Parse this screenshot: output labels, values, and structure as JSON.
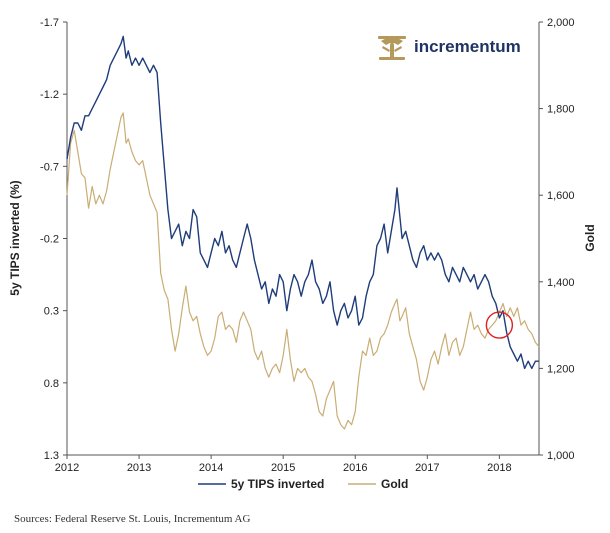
{
  "brand": {
    "name": "incrementum",
    "logo_icon": "tree-logo-icon",
    "logo_color": "#b5995b"
  },
  "source": "Sources: Federal Reserve St. Louis, Incrementum AG",
  "chart_data": {
    "type": "line",
    "title": "",
    "xlabel": "",
    "x_ticks": [
      "2012",
      "2013",
      "2014",
      "2015",
      "2016",
      "2017",
      "2018"
    ],
    "xlim": [
      2012.0,
      2018.55
    ],
    "y_left": {
      "label": "5y TIPS inverted (%)",
      "ticks": [
        "-1.7",
        "-1.2",
        "-0.7",
        "-0.2",
        "0.3",
        "0.8",
        "1.3"
      ],
      "range": [
        -1.7,
        1.3
      ],
      "inverted": true
    },
    "y_right": {
      "label": "Gold",
      "ticks": [
        "2,000",
        "1,800",
        "1,600",
        "1,400",
        "1,200",
        "1,000"
      ],
      "range": [
        1000,
        2000
      ]
    },
    "legend_position": "bottom-center",
    "annotation": {
      "type": "circle",
      "x": 2018.0,
      "axis": "right",
      "y": 1300,
      "color": "#e02020"
    },
    "series": [
      {
        "name": "5y TIPS inverted",
        "axis": "left",
        "color": "#1f3d7a",
        "points": [
          [
            2012.0,
            -0.75
          ],
          [
            2012.05,
            -0.9
          ],
          [
            2012.1,
            -1.0
          ],
          [
            2012.15,
            -1.0
          ],
          [
            2012.2,
            -0.95
          ],
          [
            2012.25,
            -1.05
          ],
          [
            2012.3,
            -1.05
          ],
          [
            2012.35,
            -1.1
          ],
          [
            2012.4,
            -1.15
          ],
          [
            2012.45,
            -1.2
          ],
          [
            2012.5,
            -1.25
          ],
          [
            2012.55,
            -1.3
          ],
          [
            2012.6,
            -1.4
          ],
          [
            2012.65,
            -1.45
          ],
          [
            2012.7,
            -1.5
          ],
          [
            2012.75,
            -1.55
          ],
          [
            2012.78,
            -1.6
          ],
          [
            2012.82,
            -1.45
          ],
          [
            2012.85,
            -1.5
          ],
          [
            2012.9,
            -1.4
          ],
          [
            2012.95,
            -1.45
          ],
          [
            2013.0,
            -1.4
          ],
          [
            2013.05,
            -1.45
          ],
          [
            2013.1,
            -1.4
          ],
          [
            2013.15,
            -1.35
          ],
          [
            2013.2,
            -1.4
          ],
          [
            2013.25,
            -1.35
          ],
          [
            2013.3,
            -1.0
          ],
          [
            2013.35,
            -0.7
          ],
          [
            2013.4,
            -0.4
          ],
          [
            2013.45,
            -0.2
          ],
          [
            2013.5,
            -0.25
          ],
          [
            2013.55,
            -0.3
          ],
          [
            2013.6,
            -0.15
          ],
          [
            2013.65,
            -0.25
          ],
          [
            2013.7,
            -0.2
          ],
          [
            2013.75,
            -0.4
          ],
          [
            2013.8,
            -0.35
          ],
          [
            2013.85,
            -0.1
          ],
          [
            2013.9,
            -0.05
          ],
          [
            2013.95,
            0.0
          ],
          [
            2014.0,
            -0.1
          ],
          [
            2014.05,
            -0.2
          ],
          [
            2014.1,
            -0.15
          ],
          [
            2014.15,
            -0.25
          ],
          [
            2014.2,
            -0.1
          ],
          [
            2014.25,
            -0.15
          ],
          [
            2014.3,
            -0.05
          ],
          [
            2014.35,
            0.0
          ],
          [
            2014.4,
            -0.1
          ],
          [
            2014.45,
            -0.2
          ],
          [
            2014.5,
            -0.3
          ],
          [
            2014.55,
            -0.2
          ],
          [
            2014.6,
            -0.05
          ],
          [
            2014.65,
            0.05
          ],
          [
            2014.7,
            0.15
          ],
          [
            2014.75,
            0.1
          ],
          [
            2014.8,
            0.25
          ],
          [
            2014.85,
            0.15
          ],
          [
            2014.9,
            0.2
          ],
          [
            2014.95,
            0.05
          ],
          [
            2015.0,
            0.1
          ],
          [
            2015.05,
            0.3
          ],
          [
            2015.1,
            0.15
          ],
          [
            2015.15,
            0.05
          ],
          [
            2015.2,
            0.1
          ],
          [
            2015.25,
            0.2
          ],
          [
            2015.3,
            0.1
          ],
          [
            2015.35,
            0.05
          ],
          [
            2015.4,
            -0.05
          ],
          [
            2015.45,
            0.1
          ],
          [
            2015.5,
            0.15
          ],
          [
            2015.55,
            0.25
          ],
          [
            2015.6,
            0.2
          ],
          [
            2015.65,
            0.1
          ],
          [
            2015.7,
            0.3
          ],
          [
            2015.75,
            0.4
          ],
          [
            2015.8,
            0.3
          ],
          [
            2015.85,
            0.25
          ],
          [
            2015.9,
            0.35
          ],
          [
            2015.95,
            0.3
          ],
          [
            2016.0,
            0.2
          ],
          [
            2016.05,
            0.4
          ],
          [
            2016.1,
            0.35
          ],
          [
            2016.15,
            0.2
          ],
          [
            2016.2,
            0.1
          ],
          [
            2016.25,
            0.05
          ],
          [
            2016.3,
            -0.15
          ],
          [
            2016.35,
            -0.2
          ],
          [
            2016.4,
            -0.3
          ],
          [
            2016.45,
            -0.1
          ],
          [
            2016.5,
            -0.25
          ],
          [
            2016.55,
            -0.4
          ],
          [
            2016.58,
            -0.55
          ],
          [
            2016.62,
            -0.35
          ],
          [
            2016.65,
            -0.2
          ],
          [
            2016.7,
            -0.25
          ],
          [
            2016.75,
            -0.15
          ],
          [
            2016.8,
            -0.05
          ],
          [
            2016.85,
            0.0
          ],
          [
            2016.9,
            -0.1
          ],
          [
            2016.95,
            -0.15
          ],
          [
            2017.0,
            -0.05
          ],
          [
            2017.05,
            -0.1
          ],
          [
            2017.1,
            -0.05
          ],
          [
            2017.15,
            -0.1
          ],
          [
            2017.2,
            -0.05
          ],
          [
            2017.25,
            0.05
          ],
          [
            2017.3,
            0.1
          ],
          [
            2017.35,
            0.0
          ],
          [
            2017.4,
            0.05
          ],
          [
            2017.45,
            0.1
          ],
          [
            2017.5,
            0.0
          ],
          [
            2017.55,
            0.05
          ],
          [
            2017.6,
            0.1
          ],
          [
            2017.65,
            0.05
          ],
          [
            2017.7,
            0.15
          ],
          [
            2017.75,
            0.1
          ],
          [
            2017.8,
            0.05
          ],
          [
            2017.85,
            0.1
          ],
          [
            2017.9,
            0.2
          ],
          [
            2017.95,
            0.25
          ],
          [
            2018.0,
            0.35
          ],
          [
            2018.05,
            0.3
          ],
          [
            2018.1,
            0.45
          ],
          [
            2018.15,
            0.55
          ],
          [
            2018.2,
            0.6
          ],
          [
            2018.25,
            0.65
          ],
          [
            2018.3,
            0.6
          ],
          [
            2018.35,
            0.7
          ],
          [
            2018.4,
            0.65
          ],
          [
            2018.45,
            0.7
          ],
          [
            2018.5,
            0.65
          ],
          [
            2018.55,
            0.65
          ]
        ]
      },
      {
        "name": "Gold",
        "axis": "right",
        "color": "#c9ad74",
        "points": [
          [
            2012.0,
            1600
          ],
          [
            2012.05,
            1720
          ],
          [
            2012.1,
            1750
          ],
          [
            2012.15,
            1700
          ],
          [
            2012.2,
            1650
          ],
          [
            2012.25,
            1640
          ],
          [
            2012.3,
            1570
          ],
          [
            2012.35,
            1620
          ],
          [
            2012.4,
            1580
          ],
          [
            2012.45,
            1600
          ],
          [
            2012.5,
            1580
          ],
          [
            2012.55,
            1610
          ],
          [
            2012.6,
            1660
          ],
          [
            2012.65,
            1700
          ],
          [
            2012.7,
            1740
          ],
          [
            2012.75,
            1780
          ],
          [
            2012.78,
            1790
          ],
          [
            2012.82,
            1720
          ],
          [
            2012.85,
            1730
          ],
          [
            2012.9,
            1700
          ],
          [
            2012.95,
            1680
          ],
          [
            2013.0,
            1670
          ],
          [
            2013.05,
            1680
          ],
          [
            2013.1,
            1640
          ],
          [
            2013.15,
            1600
          ],
          [
            2013.2,
            1580
          ],
          [
            2013.25,
            1560
          ],
          [
            2013.3,
            1420
          ],
          [
            2013.35,
            1380
          ],
          [
            2013.4,
            1360
          ],
          [
            2013.45,
            1290
          ],
          [
            2013.5,
            1240
          ],
          [
            2013.55,
            1280
          ],
          [
            2013.6,
            1340
          ],
          [
            2013.65,
            1390
          ],
          [
            2013.7,
            1330
          ],
          [
            2013.75,
            1310
          ],
          [
            2013.8,
            1320
          ],
          [
            2013.85,
            1280
          ],
          [
            2013.9,
            1250
          ],
          [
            2013.95,
            1230
          ],
          [
            2014.0,
            1240
          ],
          [
            2014.05,
            1270
          ],
          [
            2014.1,
            1320
          ],
          [
            2014.15,
            1330
          ],
          [
            2014.2,
            1290
          ],
          [
            2014.25,
            1300
          ],
          [
            2014.3,
            1290
          ],
          [
            2014.35,
            1260
          ],
          [
            2014.4,
            1310
          ],
          [
            2014.45,
            1330
          ],
          [
            2014.5,
            1310
          ],
          [
            2014.55,
            1290
          ],
          [
            2014.6,
            1240
          ],
          [
            2014.65,
            1220
          ],
          [
            2014.7,
            1240
          ],
          [
            2014.75,
            1200
          ],
          [
            2014.8,
            1180
          ],
          [
            2014.85,
            1200
          ],
          [
            2014.9,
            1210
          ],
          [
            2014.95,
            1190
          ],
          [
            2015.0,
            1230
          ],
          [
            2015.05,
            1290
          ],
          [
            2015.1,
            1220
          ],
          [
            2015.15,
            1170
          ],
          [
            2015.2,
            1200
          ],
          [
            2015.25,
            1190
          ],
          [
            2015.3,
            1200
          ],
          [
            2015.35,
            1180
          ],
          [
            2015.4,
            1170
          ],
          [
            2015.45,
            1140
          ],
          [
            2015.5,
            1100
          ],
          [
            2015.55,
            1090
          ],
          [
            2015.6,
            1130
          ],
          [
            2015.65,
            1150
          ],
          [
            2015.7,
            1170
          ],
          [
            2015.75,
            1090
          ],
          [
            2015.8,
            1070
          ],
          [
            2015.85,
            1060
          ],
          [
            2015.9,
            1080
          ],
          [
            2015.95,
            1070
          ],
          [
            2016.0,
            1100
          ],
          [
            2016.05,
            1180
          ],
          [
            2016.1,
            1240
          ],
          [
            2016.15,
            1230
          ],
          [
            2016.2,
            1270
          ],
          [
            2016.25,
            1230
          ],
          [
            2016.3,
            1240
          ],
          [
            2016.35,
            1270
          ],
          [
            2016.4,
            1280
          ],
          [
            2016.45,
            1300
          ],
          [
            2016.5,
            1330
          ],
          [
            2016.55,
            1350
          ],
          [
            2016.58,
            1360
          ],
          [
            2016.62,
            1310
          ],
          [
            2016.65,
            1320
          ],
          [
            2016.7,
            1340
          ],
          [
            2016.75,
            1280
          ],
          [
            2016.8,
            1250
          ],
          [
            2016.85,
            1220
          ],
          [
            2016.9,
            1170
          ],
          [
            2016.95,
            1150
          ],
          [
            2017.0,
            1180
          ],
          [
            2017.05,
            1220
          ],
          [
            2017.1,
            1240
          ],
          [
            2017.15,
            1210
          ],
          [
            2017.2,
            1250
          ],
          [
            2017.25,
            1280
          ],
          [
            2017.3,
            1230
          ],
          [
            2017.35,
            1260
          ],
          [
            2017.4,
            1270
          ],
          [
            2017.45,
            1230
          ],
          [
            2017.5,
            1250
          ],
          [
            2017.55,
            1290
          ],
          [
            2017.6,
            1330
          ],
          [
            2017.65,
            1290
          ],
          [
            2017.7,
            1300
          ],
          [
            2017.75,
            1280
          ],
          [
            2017.8,
            1270
          ],
          [
            2017.85,
            1290
          ],
          [
            2017.9,
            1300
          ],
          [
            2017.95,
            1310
          ],
          [
            2018.0,
            1330
          ],
          [
            2018.05,
            1350
          ],
          [
            2018.1,
            1320
          ],
          [
            2018.15,
            1340
          ],
          [
            2018.2,
            1320
          ],
          [
            2018.25,
            1340
          ],
          [
            2018.3,
            1300
          ],
          [
            2018.35,
            1310
          ],
          [
            2018.4,
            1290
          ],
          [
            2018.45,
            1280
          ],
          [
            2018.5,
            1260
          ],
          [
            2018.55,
            1250
          ]
        ]
      }
    ]
  }
}
